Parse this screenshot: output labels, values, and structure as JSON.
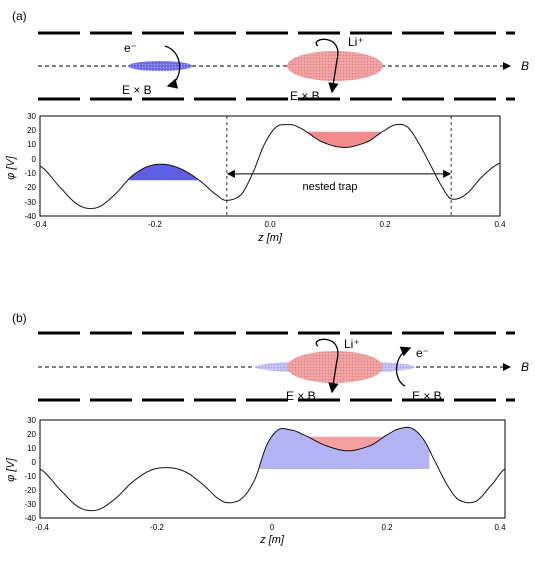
{
  "panels": [
    {
      "label": "(a)",
      "schematic": {
        "electron_label": "e⁻",
        "ion_label": "Li⁺",
        "drift_electron": "E × B",
        "drift_ion": "E × B",
        "axis_label": "B"
      },
      "plot": {
        "ylabel": "φ [V]",
        "xlabel": "z [m]",
        "annotation": "nested trap",
        "yticks": [
          "30",
          "20",
          "10",
          "0",
          "-10",
          "-20",
          "-30",
          "-40"
        ],
        "xticks": [
          "-0.4",
          "-0.2",
          "0.0",
          "0.2",
          "0.4"
        ]
      }
    },
    {
      "label": "(b)",
      "schematic": {
        "electron_label": "e⁻",
        "ion_label": "Li⁺",
        "drift_electron": "E × B",
        "drift_ion": "E × B",
        "axis_label": "B"
      },
      "plot": {
        "ylabel": "φ [V]",
        "xlabel": "z [m]",
        "yticks": [
          "30",
          "20",
          "10",
          "0",
          "-10",
          "-20",
          "-30",
          "-40"
        ],
        "xticks": [
          "-0.4",
          "-0.2",
          "0",
          "0.2",
          "0.4"
        ]
      }
    }
  ],
  "chart_data": [
    {
      "type": "line",
      "xlim": [
        -0.4,
        0.4
      ],
      "ylim": [
        -40,
        30
      ],
      "x": [
        -0.4,
        -0.36,
        -0.33,
        -0.3,
        -0.27,
        -0.24,
        -0.21,
        -0.18,
        -0.15,
        -0.12,
        -0.09,
        -0.075,
        -0.05,
        -0.03,
        -0.01,
        0.01,
        0.03,
        0.05,
        0.09,
        0.13,
        0.17,
        0.2,
        0.22,
        0.24,
        0.26,
        0.28,
        0.3,
        0.315,
        0.34,
        0.37,
        0.4
      ],
      "values": [
        -5,
        -22,
        -33,
        -34,
        -25,
        -12,
        -5,
        -4,
        -8,
        -16,
        -26,
        -29,
        -25,
        -10,
        10,
        22,
        24,
        22,
        12,
        8,
        12,
        20,
        24,
        22,
        10,
        -5,
        -20,
        -28,
        -25,
        -12,
        -3
      ],
      "fills": [
        {
          "color": "#5f5fe6",
          "x_range": [
            -0.245,
            -0.125
          ],
          "level": -15
        },
        {
          "color": "#f28c8c",
          "x_range": [
            0.03,
            0.225
          ],
          "level": 19
        }
      ],
      "nested_trap_range": [
        -0.075,
        0.315
      ]
    },
    {
      "type": "line",
      "xlim": [
        -0.4,
        0.4
      ],
      "ylim": [
        -40,
        30
      ],
      "x": [
        -0.4,
        -0.36,
        -0.33,
        -0.3,
        -0.27,
        -0.24,
        -0.21,
        -0.18,
        -0.15,
        -0.12,
        -0.09,
        -0.07,
        -0.05,
        -0.03,
        -0.01,
        0.01,
        0.03,
        0.05,
        0.09,
        0.13,
        0.17,
        0.2,
        0.22,
        0.24,
        0.26,
        0.28,
        0.3,
        0.32,
        0.35,
        0.38,
        0.4
      ],
      "values": [
        -5,
        -22,
        -33,
        -34,
        -26,
        -14,
        -6,
        -4,
        -7,
        -16,
        -27,
        -29,
        -25,
        -12,
        12,
        23,
        23,
        20,
        12,
        8,
        12,
        20,
        24,
        24,
        16,
        0,
        -16,
        -27,
        -28,
        -15,
        -5
      ],
      "fills": [
        {
          "color": "#b4b4f5",
          "x_range": [
            -0.025,
            0.27
          ],
          "level": -5
        },
        {
          "color": "#f5a0a0",
          "x_range": [
            0.03,
            0.225
          ],
          "level": 18
        }
      ]
    }
  ],
  "colors": {
    "electron": "#5f5fe6",
    "electron_light": "#b4b4f5",
    "ion": "#f28c8c",
    "ion_light": "#f5a0a0"
  }
}
